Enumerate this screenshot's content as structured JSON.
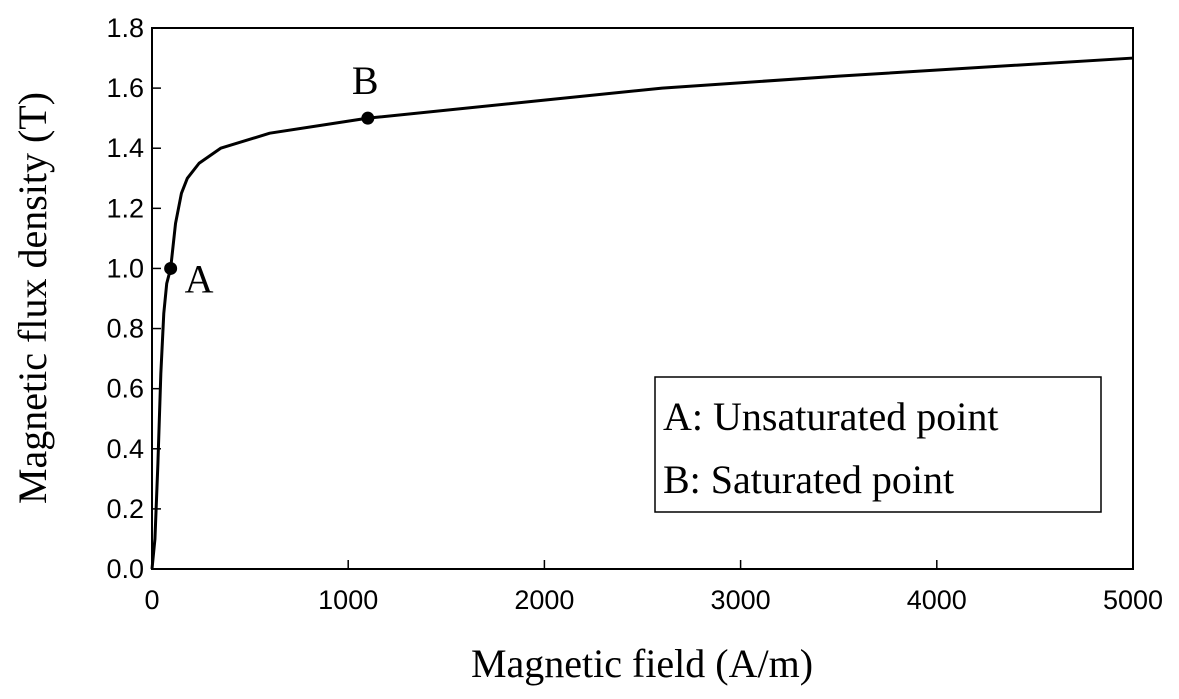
{
  "chart_data": {
    "type": "line",
    "title": "",
    "xlabel": "Magnetic field (A/m)",
    "ylabel": "Magnetic flux density (T)",
    "xlim": [
      0,
      5000
    ],
    "ylim": [
      0,
      1.8
    ],
    "xticks": [
      0,
      1000,
      2000,
      3000,
      4000,
      5000
    ],
    "yticks": [
      0.0,
      0.2,
      0.4,
      0.6,
      0.8,
      1.0,
      1.2,
      1.4,
      1.6,
      1.8
    ],
    "xtick_labels": [
      "0",
      "1000",
      "2000",
      "3000",
      "4000",
      "5000"
    ],
    "ytick_labels": [
      "0.0",
      "0.2",
      "0.4",
      "0.6",
      "0.8",
      "1.0",
      "1.2",
      "1.4",
      "1.6",
      "1.8"
    ],
    "grid": false,
    "series": [
      {
        "color": "#000000",
        "x": [
          0,
          15,
          30,
          45,
          60,
          75,
          95,
          120,
          150,
          180,
          240,
          350,
          600,
          1100,
          2000,
          2600,
          3500,
          5000
        ],
        "y": [
          0.0,
          0.1,
          0.35,
          0.65,
          0.85,
          0.95,
          1.0,
          1.15,
          1.25,
          1.3,
          1.35,
          1.4,
          1.45,
          1.5,
          1.56,
          1.6,
          1.64,
          1.7
        ]
      }
    ],
    "points": [
      {
        "label": "A",
        "x": 95,
        "y": 1.0
      },
      {
        "label": "B",
        "x": 1100,
        "y": 1.5
      }
    ],
    "legend": {
      "position": "bottom-right",
      "entries": [
        "A: Unsaturated point",
        "B: Saturated point"
      ]
    }
  }
}
